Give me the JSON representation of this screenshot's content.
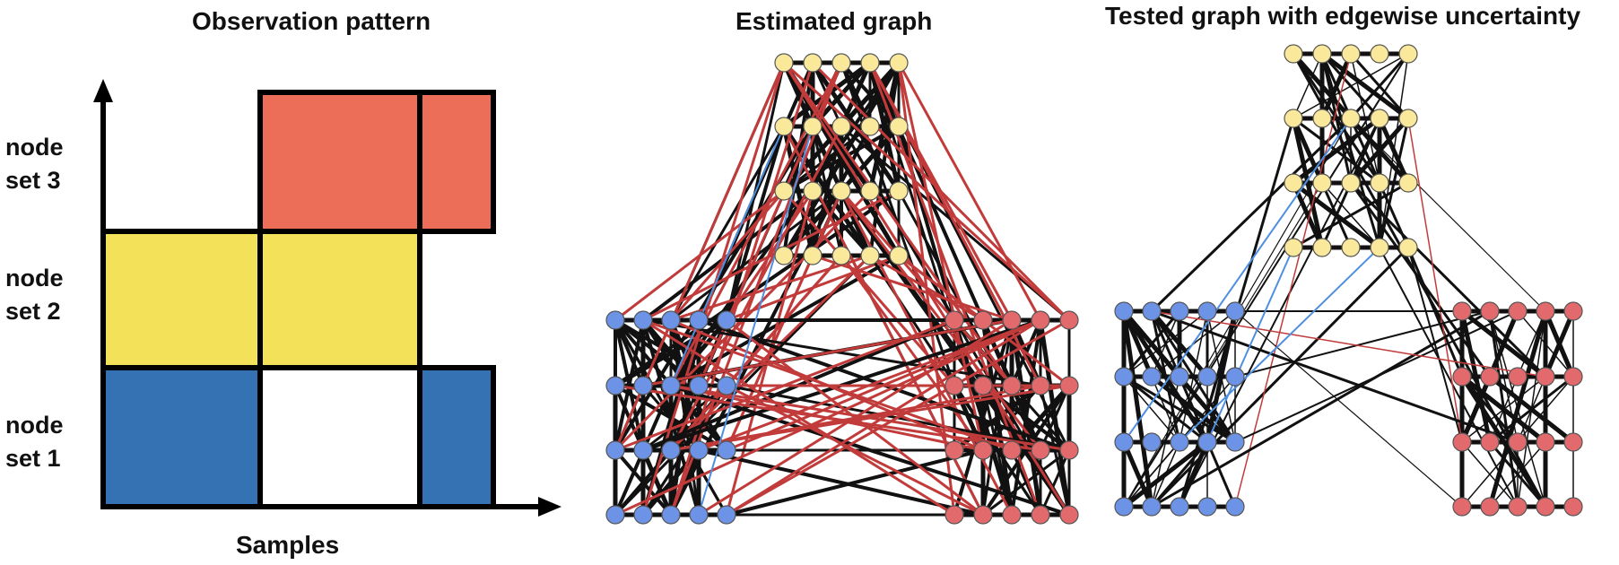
{
  "panels": {
    "observation": {
      "title": "Observation pattern",
      "xlabel": "Samples"
    },
    "estimated": {
      "title": "Estimated graph"
    },
    "tested": {
      "title": "Tested graph with edgewise uncertainty"
    }
  },
  "node_sets": [
    {
      "line1": "node",
      "line2": "set 1",
      "color": "#3572b4"
    },
    {
      "line1": "node",
      "line2": "set 2",
      "color": "#f4e15a"
    },
    {
      "line1": "node",
      "line2": "set 3",
      "color": "#ec6d58"
    }
  ],
  "node_colors": {
    "blue": "#6d93e6",
    "yellow": "#fbe99b",
    "red": "#e36a6c"
  },
  "edge_colors": {
    "black": "#111111",
    "red": "#c23b3b",
    "blue": "#4f8fe0"
  }
}
